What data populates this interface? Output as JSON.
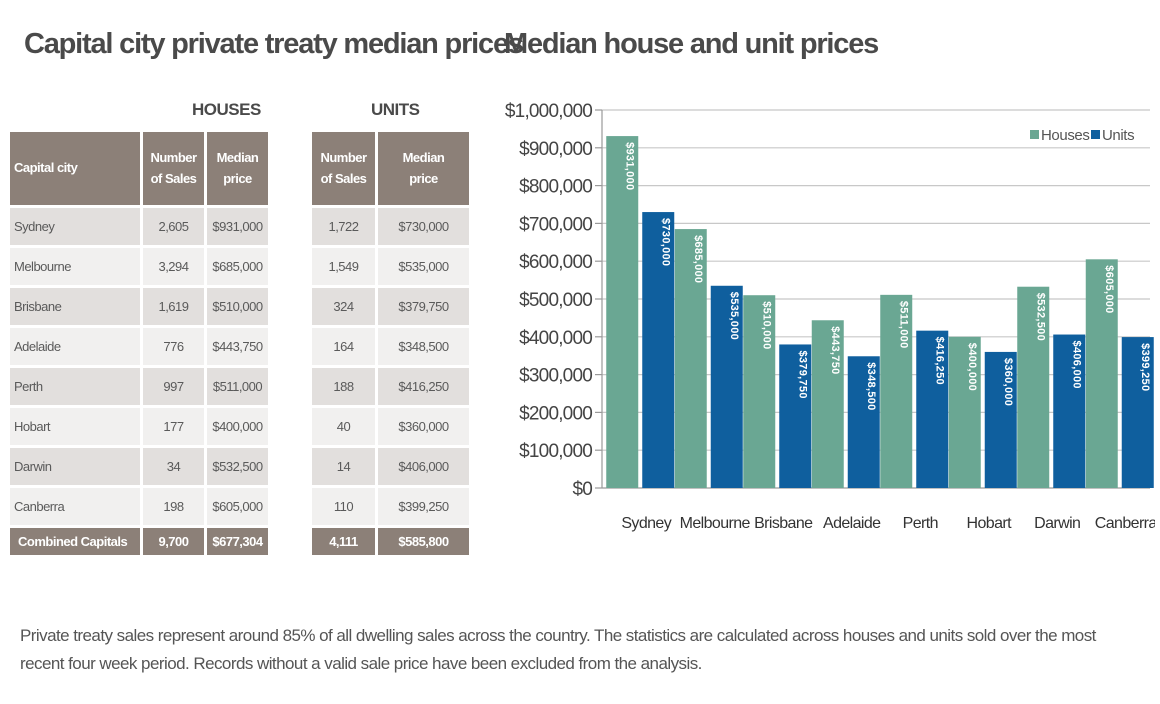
{
  "left_title": "Capital city private treaty median prices",
  "houses_header": "HOUSES",
  "units_header": "UNITS",
  "table_headers": {
    "city": "Capital city",
    "number_line1": "Number",
    "number_line2": "of Sales",
    "median_line1": "Median",
    "median_line2": "price"
  },
  "rows": [
    {
      "city": "Sydney",
      "house_sales": "2,605",
      "house_price": "$931,000",
      "unit_sales": "1,722",
      "unit_price": "$730,000"
    },
    {
      "city": "Melbourne",
      "house_sales": "3,294",
      "house_price": "$685,000",
      "unit_sales": "1,549",
      "unit_price": "$535,000"
    },
    {
      "city": "Brisbane",
      "house_sales": "1,619",
      "house_price": "$510,000",
      "unit_sales": "324",
      "unit_price": "$379,750"
    },
    {
      "city": "Adelaide",
      "house_sales": "776",
      "house_price": "$443,750",
      "unit_sales": "164",
      "unit_price": "$348,500"
    },
    {
      "city": "Perth",
      "house_sales": "997",
      "house_price": "$511,000",
      "unit_sales": "188",
      "unit_price": "$416,250"
    },
    {
      "city": "Hobart",
      "house_sales": "177",
      "house_price": "$400,000",
      "unit_sales": "40",
      "unit_price": "$360,000"
    },
    {
      "city": "Darwin",
      "house_sales": "34",
      "house_price": "$532,500",
      "unit_sales": "14",
      "unit_price": "$406,000"
    },
    {
      "city": "Canberra",
      "house_sales": "198",
      "house_price": "$605,000",
      "unit_sales": "110",
      "unit_price": "$399,250"
    }
  ],
  "total": {
    "city": "Combined Capitals",
    "house_sales": "9,700",
    "house_price": "$677,304",
    "unit_sales": "4,111",
    "unit_price": "$585,800"
  },
  "chart_data": {
    "type": "bar",
    "title": "Median house and unit prices",
    "xlabel": "",
    "ylabel": "",
    "categories": [
      "Sydney",
      "Melbourne",
      "Brisbane",
      "Adelaide",
      "Perth",
      "Hobart",
      "Darwin",
      "Canberra"
    ],
    "series": [
      {
        "name": "Houses",
        "color": "#6aa793",
        "values": [
          931000,
          685000,
          510000,
          443750,
          511000,
          400000,
          532500,
          605000
        ],
        "labels": [
          "$931,000",
          "$685,000",
          "$510,000",
          "$443,750",
          "$511,000",
          "$400,000",
          "$532,500",
          "$605,000"
        ]
      },
      {
        "name": "Units",
        "color": "#0f5f9e",
        "values": [
          730000,
          535000,
          379750,
          348500,
          416250,
          360000,
          406000,
          399250
        ],
        "labels": [
          "$730,000",
          "$535,000",
          "$379,750",
          "$348,500",
          "$416,250",
          "$360,000",
          "$406,000",
          "$399,250"
        ]
      }
    ],
    "ylim": [
      0,
      1000000
    ],
    "yticks": [
      0,
      100000,
      200000,
      300000,
      400000,
      500000,
      600000,
      700000,
      800000,
      900000,
      1000000
    ],
    "ytick_labels": [
      "$0",
      "$100,000",
      "$200,000",
      "$300,000",
      "$400,000",
      "$500,000",
      "$600,000",
      "$700,000",
      "$800,000",
      "$900,000",
      "$1,000,000"
    ],
    "grid": true,
    "legend_position": "top-right"
  },
  "footnote": "Private treaty sales represent around 85% of all dwelling sales across the country.  The statistics are calculated across houses and units sold over the most recent four week period. Records without a valid sale price have been excluded from the analysis."
}
